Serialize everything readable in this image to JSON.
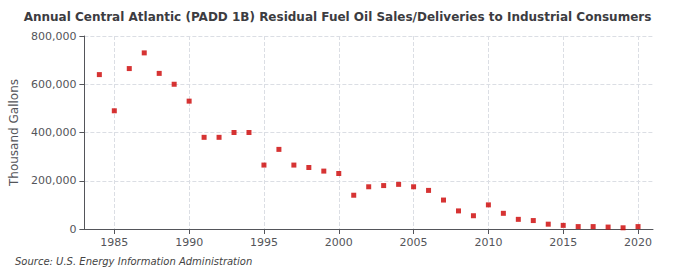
{
  "chart_data": {
    "type": "scatter",
    "title": "Annual Central Atlantic (PADD 1B) Residual Fuel Oil Sales/Deliveries to Industrial Consumers",
    "ylabel": "Thousand Gallons",
    "source": "Source: U.S. Energy Information Administration",
    "x": [
      1984,
      1985,
      1986,
      1987,
      1988,
      1989,
      1990,
      1991,
      1992,
      1993,
      1994,
      1995,
      1996,
      1997,
      1998,
      1999,
      2000,
      2001,
      2002,
      2003,
      2004,
      2005,
      2006,
      2007,
      2008,
      2009,
      2010,
      2011,
      2012,
      2013,
      2014,
      2015,
      2016,
      2017,
      2018,
      2019,
      2020
    ],
    "values": [
      640000,
      490000,
      665000,
      730000,
      645000,
      600000,
      530000,
      380000,
      380000,
      400000,
      400000,
      265000,
      330000,
      265000,
      255000,
      240000,
      230000,
      140000,
      175000,
      180000,
      185000,
      175000,
      160000,
      120000,
      75000,
      55000,
      100000,
      65000,
      40000,
      35000,
      20000,
      15000,
      10000,
      10000,
      8000,
      5000,
      10000
    ],
    "color": "#cc0000",
    "marker": "square",
    "xlim": [
      1983,
      2021
    ],
    "xticks": [
      1985,
      1990,
      1995,
      2000,
      2005,
      2010,
      2015,
      2020
    ],
    "ylim": [
      0,
      800000
    ],
    "yticks": [
      0,
      {
        "value": 200000,
        "label": "200,000"
      },
      {
        "value": 400000,
        "label": "400,000"
      },
      {
        "value": 600000,
        "label": "600,000"
      },
      {
        "value": 800000,
        "label": "800,000"
      }
    ],
    "grid": true
  }
}
